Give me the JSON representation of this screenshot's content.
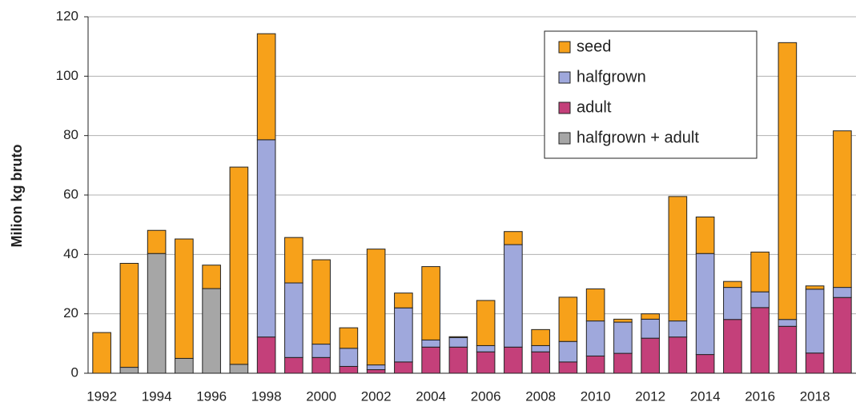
{
  "chart_data": {
    "type": "stacked-bar",
    "ylabel": "Milion kg bruto",
    "categories": [
      "1992",
      null,
      "1994",
      null,
      "1996",
      null,
      "1998",
      null,
      "2000",
      null,
      "2002",
      null,
      "2004",
      null,
      "2006",
      null,
      "2008",
      null,
      "2010",
      null,
      "2012",
      null,
      "2014",
      null,
      "2016",
      null,
      "2018",
      null
    ],
    "series": [
      {
        "name": "seed",
        "color": "#f7a11a",
        "values": [
          13.7,
          35,
          7.8,
          40.2,
          7.9,
          66.4,
          35.7,
          15.3,
          28.4,
          6.9,
          39,
          5,
          24.7,
          0.3,
          15.2,
          4.4,
          5.4,
          14.9,
          10.8,
          1,
          1.8,
          41.9,
          12.3,
          2,
          13.4,
          93.2,
          1.1,
          52.7
        ]
      },
      {
        "name": "halfgrown",
        "color": "#9fa8dc",
        "values": [
          0,
          0,
          0,
          0,
          0,
          0,
          66.4,
          25.1,
          4.5,
          6.1,
          1.6,
          18.2,
          2.4,
          3.2,
          2.1,
          34.5,
          2.1,
          6.9,
          11.8,
          10.5,
          6.4,
          5.4,
          34,
          10.8,
          5.3,
          2.3,
          21.5,
          3.4
        ]
      },
      {
        "name": "adult",
        "color": "#c4407a",
        "values": [
          0,
          0,
          0,
          0,
          0,
          0,
          12.2,
          5.3,
          5.3,
          2.3,
          1.2,
          3.8,
          8.8,
          8.8,
          7.2,
          8.8,
          7.2,
          3.8,
          5.8,
          6.7,
          11.8,
          12.2,
          6.3,
          18.1,
          22.1,
          15.8,
          6.8,
          25.5
        ]
      },
      {
        "name": "halfgrown + adult",
        "color": "#a6a6a6",
        "values": [
          0,
          2,
          40.3,
          5,
          28.5,
          3,
          0,
          0,
          0,
          0,
          0,
          0,
          0,
          0,
          0,
          0,
          0,
          0,
          0,
          0,
          0,
          0,
          0,
          0,
          0,
          0,
          0,
          0
        ]
      }
    ],
    "ylim": [
      0,
      120
    ],
    "yticks": [
      0,
      20,
      40,
      60,
      80,
      100,
      120
    ],
    "grid": true,
    "legend": "upper right"
  }
}
